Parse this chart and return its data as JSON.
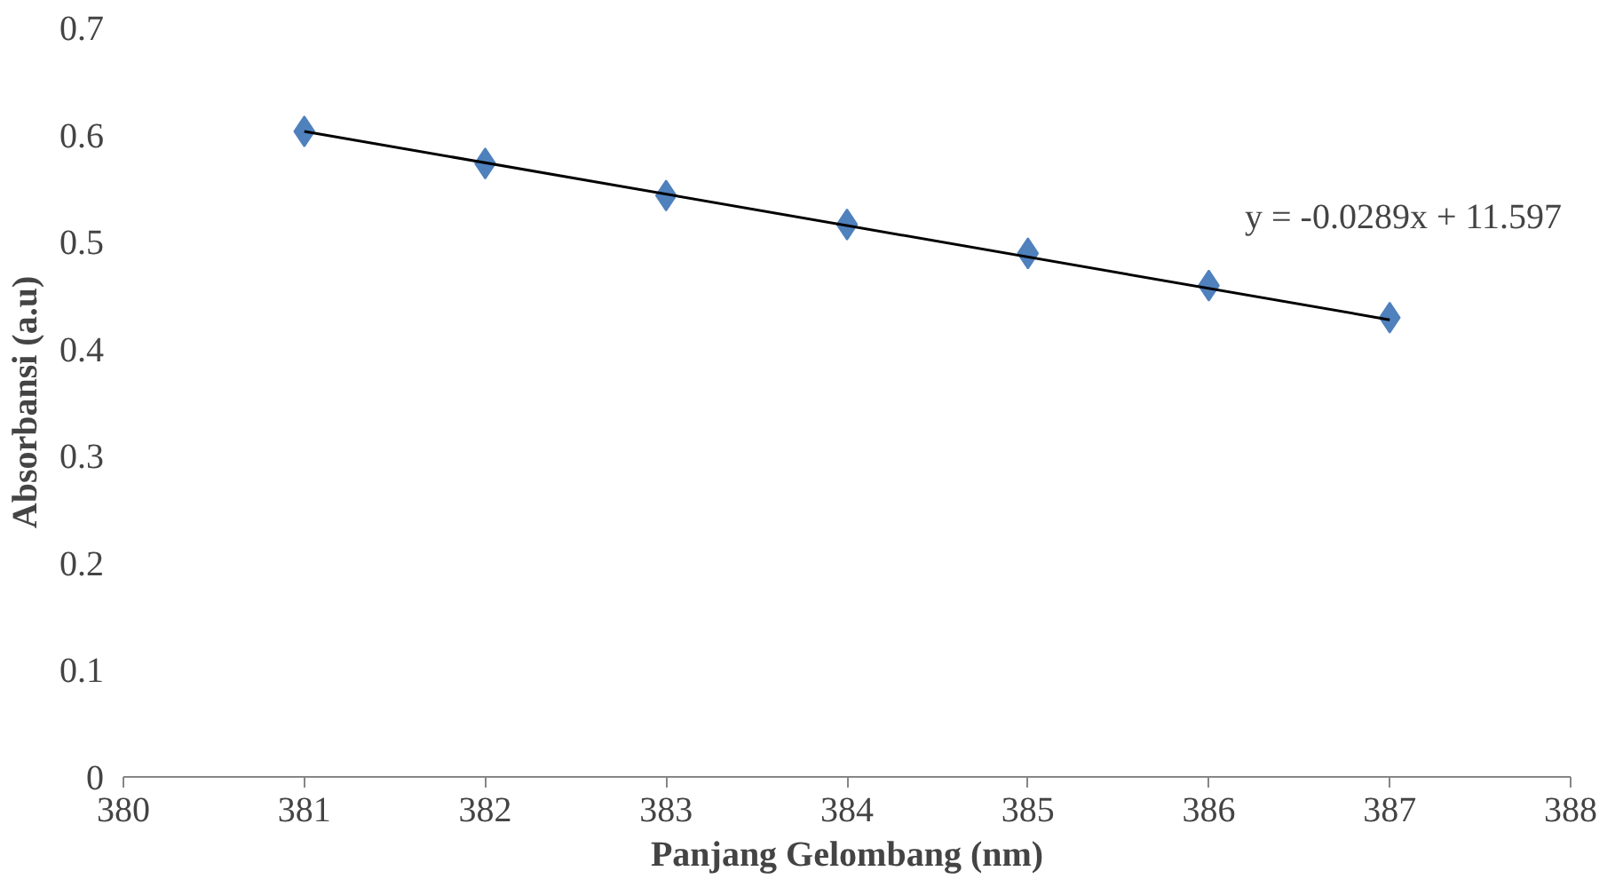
{
  "chart_data": {
    "type": "scatter",
    "xlabel": "Panjang Gelombang (nm)",
    "ylabel": "Absorbansi (a.u)",
    "x": [
      381,
      382,
      383,
      384,
      385,
      386,
      387
    ],
    "series": [
      {
        "color": "#4f81bd",
        "marker": "diamond",
        "values": [
          0.603,
          0.573,
          0.543,
          0.516,
          0.489,
          0.459,
          0.429
        ]
      },
      {
        "type": "line",
        "color": "#000000",
        "x": [
          381,
          387
        ],
        "values": [
          0.603,
          0.427
        ]
      }
    ],
    "xlim": [
      380,
      388
    ],
    "xticks": [
      380,
      381,
      382,
      383,
      384,
      385,
      386,
      387,
      388
    ],
    "ylim": [
      0,
      0.7
    ],
    "yticks": [
      0,
      0.1,
      0.2,
      0.3,
      0.4,
      0.5,
      0.6,
      0.7
    ],
    "grid": false,
    "annotations": [
      "y = -0.0289x + 11.597"
    ]
  }
}
